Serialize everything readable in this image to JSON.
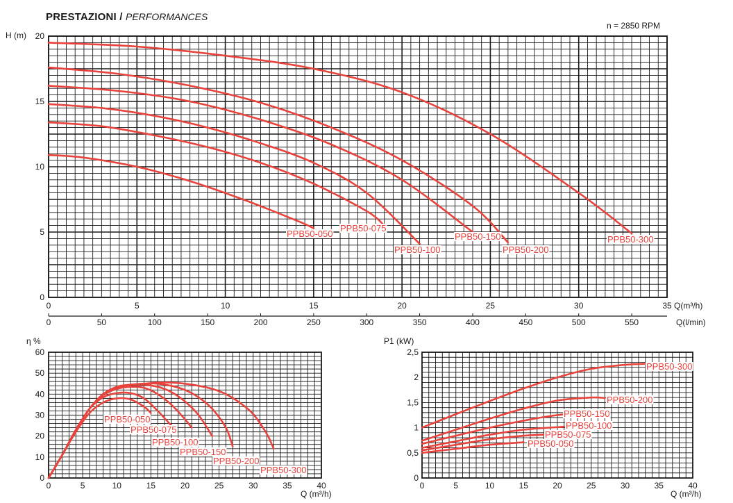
{
  "header": {
    "title_bold": "PRESTAZIONI /",
    "title_italic": "PERFORMANCES",
    "rpm": "n = 2850 RPM"
  },
  "colors": {
    "curve": "#e8433c",
    "grid": "#1a1a1a",
    "text": "#1a1a1a"
  },
  "chart_data": [
    {
      "type": "line",
      "id": "head",
      "xlabel": "Q(m³/h)",
      "ylabel": "H (m)",
      "xlim": [
        0,
        35
      ],
      "ylim": [
        0,
        20
      ],
      "xticks": [
        0,
        5,
        10,
        15,
        20,
        25,
        30,
        35
      ],
      "yticks": [
        0,
        5,
        10,
        15,
        20
      ],
      "secondary_xlabel": "Q(l/min)",
      "secondary_xticks": [
        0,
        50,
        100,
        150,
        200,
        250,
        300,
        350,
        400,
        450,
        500,
        550
      ],
      "grid": true,
      "series": [
        {
          "name": "PPB50-050",
          "x": [
            0,
            2,
            5,
            8,
            11,
            14,
            15
          ],
          "y": [
            10.9,
            10.7,
            10.0,
            8.9,
            7.5,
            5.9,
            5.3
          ]
        },
        {
          "name": "PPB50-075",
          "x": [
            0,
            3,
            6,
            9,
            12,
            15,
            18,
            19
          ],
          "y": [
            13.4,
            13.1,
            12.4,
            11.5,
            10.3,
            8.7,
            6.6,
            5.5
          ]
        },
        {
          "name": "PPB50-100",
          "x": [
            0,
            3,
            6,
            9,
            12,
            15,
            18,
            21
          ],
          "y": [
            14.8,
            14.5,
            13.9,
            13.0,
            11.8,
            10.3,
            8.0,
            4.1
          ]
        },
        {
          "name": "PPB50-150",
          "x": [
            0,
            4,
            8,
            12,
            16,
            20,
            24
          ],
          "y": [
            16.2,
            15.8,
            15.0,
            13.6,
            11.7,
            9.0,
            5.0
          ]
        },
        {
          "name": "PPB50-200",
          "x": [
            0,
            4,
            8,
            12,
            16,
            20,
            24,
            26
          ],
          "y": [
            17.6,
            17.1,
            16.2,
            14.9,
            13.0,
            10.5,
            7.0,
            4.2
          ]
        },
        {
          "name": "PPB50-300",
          "x": [
            0,
            5,
            10,
            15,
            20,
            25,
            30,
            33
          ],
          "y": [
            19.5,
            19.2,
            18.5,
            17.5,
            15.7,
            12.5,
            8.0,
            4.9
          ]
        }
      ]
    },
    {
      "type": "line",
      "id": "efficiency",
      "xlabel": "Q (m³/h)",
      "ylabel": "η %",
      "xlim": [
        0,
        40
      ],
      "ylim": [
        0,
        60
      ],
      "xticks": [
        0,
        5,
        10,
        15,
        20,
        25,
        30,
        35,
        40
      ],
      "yticks": [
        0,
        10,
        20,
        30,
        40,
        50,
        60
      ],
      "grid": true,
      "series": [
        {
          "name": "PPB50-050",
          "x": [
            0,
            2,
            4,
            6,
            8,
            10,
            12,
            14,
            15
          ],
          "y": [
            0,
            11,
            22,
            31,
            36,
            38,
            37.5,
            34,
            31
          ]
        },
        {
          "name": "PPB50-075",
          "x": [
            0,
            2,
            4,
            6,
            8,
            10,
            12,
            14,
            16,
            18
          ],
          "y": [
            0,
            11,
            23,
            33,
            38.5,
            40.5,
            40.5,
            38,
            32,
            25
          ]
        },
        {
          "name": "PPB50-100",
          "x": [
            0,
            2,
            4,
            6,
            8,
            10,
            12,
            14,
            16,
            18,
            20,
            21
          ],
          "y": [
            0,
            11,
            23,
            33,
            39.5,
            42.5,
            43.5,
            43,
            40,
            35,
            28,
            24
          ]
        },
        {
          "name": "PPB50-150",
          "x": [
            0,
            2,
            4,
            6,
            8,
            10,
            12,
            14,
            16,
            18,
            20,
            22,
            24
          ],
          "y": [
            0,
            11,
            23,
            33,
            40,
            43.5,
            44.5,
            44.5,
            43.5,
            41,
            36.5,
            30,
            20
          ]
        },
        {
          "name": "PPB50-200",
          "x": [
            0,
            2,
            4,
            6,
            8,
            10,
            12,
            14,
            16,
            18,
            20,
            22,
            24,
            26,
            27
          ],
          "y": [
            0,
            11,
            23,
            33,
            40,
            43.5,
            44.5,
            45,
            45,
            44,
            42,
            38.5,
            33,
            24,
            15
          ]
        },
        {
          "name": "PPB50-300",
          "x": [
            0,
            2,
            4,
            6,
            8,
            10,
            12,
            14,
            16,
            18,
            20,
            22,
            24,
            26,
            28,
            30,
            32,
            33
          ],
          "y": [
            0,
            11,
            23,
            33,
            40,
            43,
            44.5,
            45,
            45.5,
            45.5,
            45,
            44,
            42.5,
            40,
            36,
            30.5,
            21,
            14
          ]
        }
      ]
    },
    {
      "type": "line",
      "id": "power",
      "xlabel": "Q (m³/h)",
      "ylabel": "P1 (kW)",
      "xlim": [
        0,
        40
      ],
      "ylim": [
        0,
        2.5
      ],
      "xticks": [
        0,
        5,
        10,
        15,
        20,
        25,
        30,
        35,
        40
      ],
      "yticks": [
        "0",
        "0,5",
        "1",
        "1,5",
        "2",
        "2,5"
      ],
      "ytick_values": [
        0,
        0.5,
        1,
        1.5,
        2,
        2.5
      ],
      "grid": true,
      "series": [
        {
          "name": "PPB50-050",
          "x": [
            0,
            5,
            10,
            15
          ],
          "y": [
            0.5,
            0.58,
            0.66,
            0.71
          ]
        },
        {
          "name": "PPB50-075",
          "x": [
            0,
            5,
            10,
            15,
            18
          ],
          "y": [
            0.55,
            0.66,
            0.77,
            0.84,
            0.86
          ]
        },
        {
          "name": "PPB50-100",
          "x": [
            0,
            5,
            10,
            15,
            21
          ],
          "y": [
            0.6,
            0.73,
            0.86,
            0.96,
            1.02
          ]
        },
        {
          "name": "PPB50-150",
          "x": [
            0,
            5,
            10,
            15,
            20,
            24
          ],
          "y": [
            0.68,
            0.84,
            1.0,
            1.14,
            1.25,
            1.29
          ]
        },
        {
          "name": "PPB50-200",
          "x": [
            0,
            5,
            10,
            15,
            20,
            25,
            27
          ],
          "y": [
            0.74,
            0.96,
            1.18,
            1.38,
            1.54,
            1.6,
            1.59
          ]
        },
        {
          "name": "PPB50-300",
          "x": [
            0,
            5,
            10,
            15,
            20,
            25,
            30,
            33
          ],
          "y": [
            1.0,
            1.27,
            1.53,
            1.78,
            2.0,
            2.17,
            2.25,
            2.27
          ]
        }
      ]
    }
  ]
}
